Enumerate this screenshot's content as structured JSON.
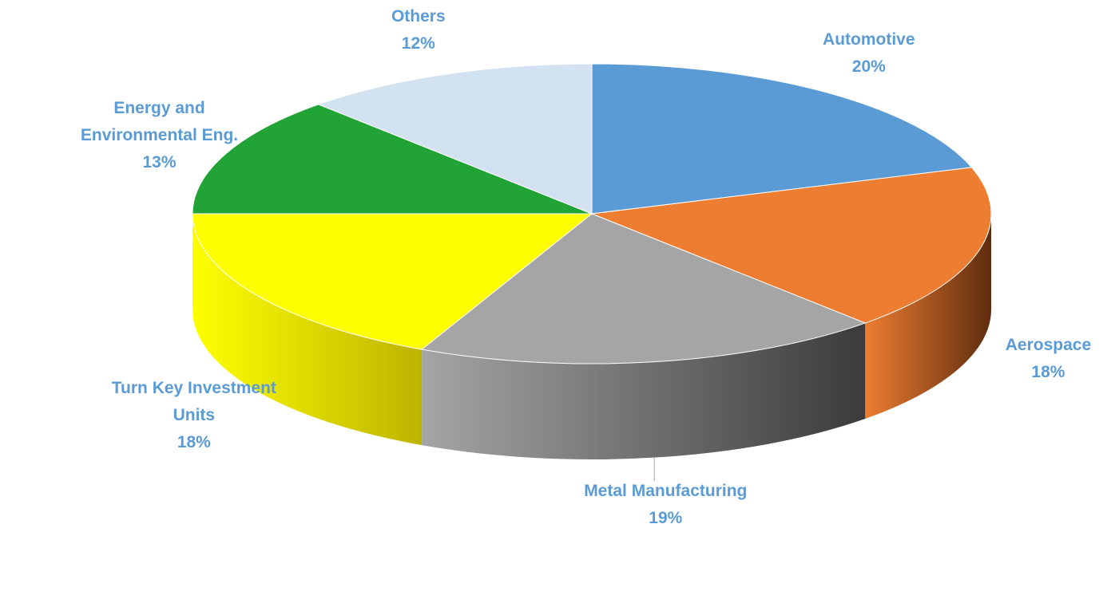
{
  "chart_data": {
    "type": "pie",
    "title": "",
    "label_color": "#5B9BD5",
    "slices": [
      {
        "name": "Automotive",
        "lines": [
          "Automotive"
        ],
        "value": 20,
        "label": "20%",
        "color": "#5B9BD5",
        "side_dark": "#3A6E9E"
      },
      {
        "name": "Aerospace",
        "lines": [
          "Aerospace"
        ],
        "value": 18,
        "label": "18%",
        "color": "#ED7D31",
        "side_dark": "#5E2C0E"
      },
      {
        "name": "Metal Manufacturing",
        "lines": [
          "Metal Manufacturing"
        ],
        "value": 19,
        "label": "19%",
        "color": "#A5A5A5",
        "side_dark": "#3B3B3B"
      },
      {
        "name": "Turn Key Investment Units",
        "lines": [
          "Turn Key Investment",
          "Units"
        ],
        "value": 18,
        "label": "18%",
        "color": "#FFFF00",
        "side_dark": "#BDB400"
      },
      {
        "name": "Energy and Environmental Eng.",
        "lines": [
          "Energy and",
          "Environmental Eng."
        ],
        "value": 13,
        "label": "13%",
        "color": "#21A336",
        "side_dark": "#11661E"
      },
      {
        "name": "Others",
        "lines": [
          "Others"
        ],
        "value": 12,
        "label": "12%",
        "color": "#D3E2F1",
        "side_dark": "#8FA3B8"
      }
    ]
  }
}
